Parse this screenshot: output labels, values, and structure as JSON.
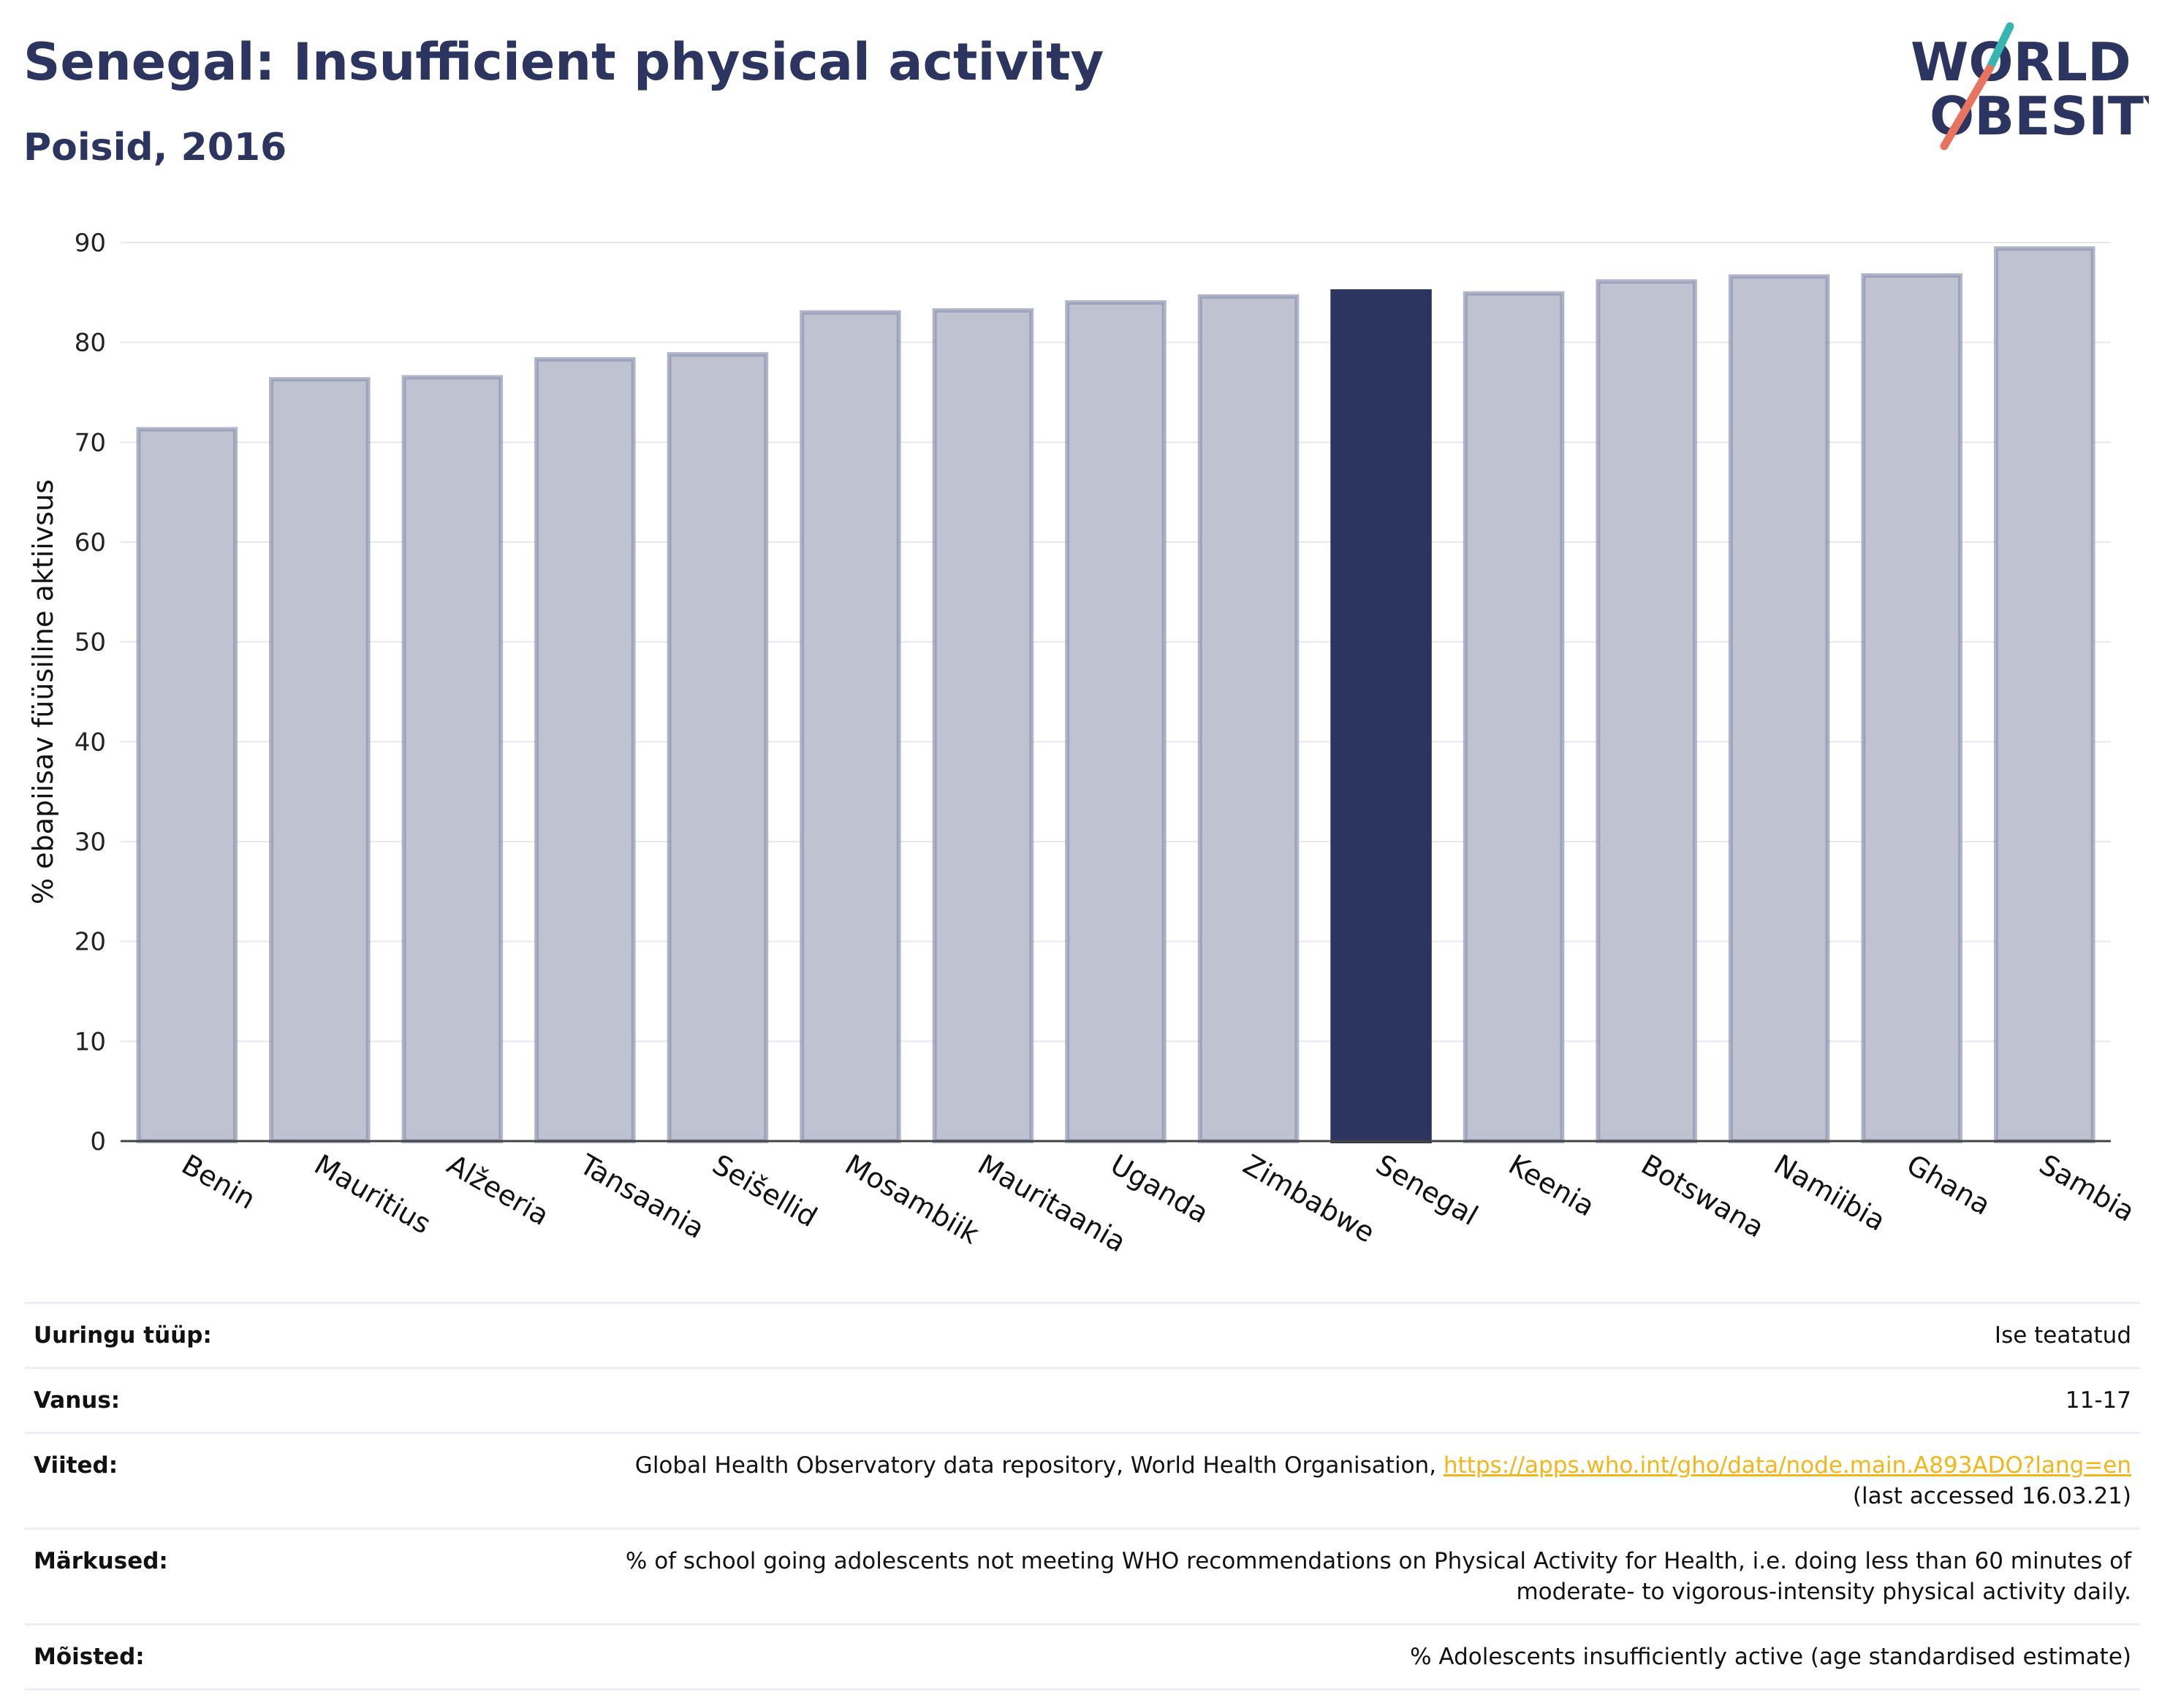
{
  "header": {
    "title": "Senegal: Insufficient physical activity",
    "subtitle": "Poisid, 2016"
  },
  "logo": {
    "line1": "WORLD",
    "line2": "OBESITY"
  },
  "colors": {
    "primary": "#2b355f",
    "bar_fill": "#bfc2d0",
    "bar_stroke": "#8f96b2",
    "grid": "#e6e8f0",
    "link": "#f2b619",
    "logo_teal": "#37b5b1",
    "logo_coral": "#e8735e"
  },
  "chart_data": {
    "type": "bar",
    "ylabel": "% ebapiisav füüsiline aktiivsus",
    "ylim": [
      0,
      90
    ],
    "yticks": [
      0,
      10,
      20,
      30,
      40,
      50,
      60,
      70,
      80,
      90
    ],
    "grid": true,
    "highlight": "Senegal",
    "categories": [
      "Benin",
      "Mauritius",
      "Alžeeria",
      "Tansaania",
      "Seišellid",
      "Mosambiik",
      "Mauritaania",
      "Uganda",
      "Zimbabwe",
      "Senegal",
      "Keenia",
      "Botswana",
      "Namiibia",
      "Ghana",
      "Sambia"
    ],
    "values": [
      71.3,
      76.3,
      76.5,
      78.3,
      78.8,
      83.0,
      83.2,
      84.0,
      84.6,
      85.1,
      84.9,
      86.1,
      86.6,
      86.7,
      89.4
    ]
  },
  "info": {
    "rows": [
      {
        "label": "Uuringu tüüp:",
        "value": "Ise teatatud"
      },
      {
        "label": "Vanus:",
        "value": "11-17"
      },
      {
        "label": "Viited:",
        "value_prefix": "Global Health Observatory data repository, World Health Organisation, ",
        "link": "https://apps.who.int/gho/data/node.main.A893ADO?lang=en",
        "value_suffix": "(last accessed 16.03.21)"
      },
      {
        "label": "Märkused:",
        "value": "% of school going adolescents not meeting WHO recommendations on Physical Activity for Health, i.e. doing less than 60 minutes of moderate- to vigorous-intensity physical activity daily."
      },
      {
        "label": "Mõisted:",
        "value": "% Adolescents insufficiently active (age standardised estimate)"
      }
    ]
  }
}
